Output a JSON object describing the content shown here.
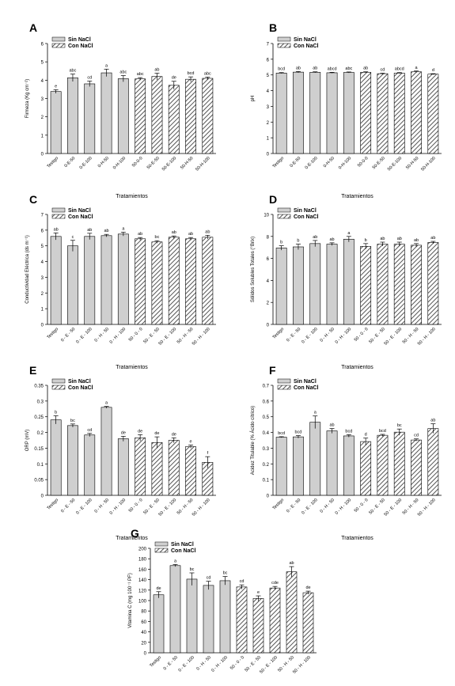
{
  "legend": {
    "sin": "Sin NaCl",
    "con": "Con NaCl"
  },
  "colors": {
    "bar": "#cfcfcf",
    "stroke": "#000000",
    "hatch": "#555555"
  },
  "chart_data": [
    {
      "id": "A",
      "panel_label": "A",
      "type": "bar",
      "ylabel": "Firmeza (Kg cm⁻²)",
      "xlabel": "Tratamientos",
      "ylim": [
        0,
        6
      ],
      "yticks": [
        0,
        1,
        2,
        3,
        4,
        5,
        6
      ],
      "legend_position": "top-left",
      "categories": [
        "Testigo",
        "0-E-50",
        "0-E-100",
        "0-H-50",
        "0-H-100",
        "50-0-0",
        "50-E-50",
        "50-E-100",
        "50-H-50",
        "50-H-100"
      ],
      "series": [
        {
          "name": "Sin NaCl",
          "values": [
            3.38,
            4.13,
            3.8,
            4.4,
            4.08,
            null,
            null,
            null,
            null,
            null
          ],
          "errors": [
            0.1,
            0.2,
            0.15,
            0.2,
            0.17,
            null,
            null,
            null,
            null,
            null
          ],
          "letters": [
            "e",
            "abc",
            "cd",
            "a",
            "abc",
            null,
            null,
            null,
            null,
            null
          ]
        },
        {
          "name": "Con NaCl",
          "values": [
            null,
            null,
            null,
            null,
            null,
            4.07,
            4.2,
            3.72,
            4.05,
            4.1
          ],
          "errors": [
            null,
            null,
            null,
            null,
            null,
            0.07,
            0.18,
            0.22,
            0.13,
            0.07
          ],
          "letters": [
            null,
            null,
            null,
            null,
            null,
            "abc",
            "ab",
            "de",
            "bcd",
            "abc"
          ]
        }
      ]
    },
    {
      "id": "B",
      "panel_label": "B",
      "type": "bar",
      "ylabel": "pH",
      "xlabel": "Tratamientos",
      "ylim": [
        0,
        7
      ],
      "yticks": [
        0,
        1,
        2,
        3,
        4,
        5,
        6,
        7
      ],
      "legend_position": "top-left",
      "categories": [
        "Testigo",
        "0-E-50",
        "0-E-100",
        "0-H-50",
        "0-H-100",
        "50-0-0",
        "50-E-50",
        "50-E-100",
        "50-H-50",
        "50-H-100"
      ],
      "series": [
        {
          "name": "Sin NaCl",
          "values": [
            5.12,
            5.18,
            5.17,
            5.14,
            5.16,
            null,
            null,
            null,
            null,
            null
          ],
          "errors": [
            0.03,
            0.04,
            0.03,
            0.03,
            0.03,
            null,
            null,
            null,
            null,
            null
          ],
          "letters": [
            "bcd",
            "ab",
            "ab",
            "abcd",
            "abc",
            null,
            null,
            null,
            null,
            null
          ]
        },
        {
          "name": "Con NaCl",
          "values": [
            null,
            null,
            null,
            null,
            null,
            5.17,
            5.08,
            5.12,
            5.2,
            5.05
          ],
          "errors": [
            null,
            null,
            null,
            null,
            null,
            0.03,
            0.03,
            0.03,
            0.05,
            0.03
          ],
          "letters": [
            null,
            null,
            null,
            null,
            null,
            "ab",
            "cd",
            "abcd",
            "a",
            "d"
          ]
        }
      ]
    },
    {
      "id": "C",
      "panel_label": "C",
      "type": "bar",
      "ylabel": "Conductividad Eléctrica (ds m⁻¹)",
      "xlabel": "Tratamientos",
      "ylim": [
        0,
        7
      ],
      "yticks": [
        0,
        1,
        2,
        3,
        4,
        5,
        6,
        7
      ],
      "legend_position": "top-left",
      "categories": [
        "Testigo",
        "0 - E - 50",
        "0 - E - 100",
        "0 - H - 50",
        "0 - H - 100",
        "50 - 0 - 0",
        "50 - E - 50",
        "50 - E - 100",
        "50 - H - 50",
        "50 - H - 100"
      ],
      "series": [
        {
          "name": "Sin NaCl",
          "values": [
            5.6,
            5.0,
            5.6,
            5.65,
            5.75,
            null,
            null,
            null,
            null,
            null
          ],
          "errors": [
            0.22,
            0.35,
            0.2,
            0.08,
            0.12,
            null,
            null,
            null,
            null,
            null
          ],
          "letters": [
            "ab",
            "c",
            "ab",
            "ab",
            "a",
            null,
            null,
            null,
            null,
            null
          ]
        },
        {
          "name": "Con NaCl",
          "values": [
            null,
            null,
            null,
            null,
            null,
            5.45,
            5.25,
            5.55,
            5.45,
            5.55
          ],
          "errors": [
            null,
            null,
            null,
            null,
            null,
            0.08,
            0.08,
            0.08,
            0.08,
            0.12
          ],
          "letters": [
            null,
            null,
            null,
            null,
            null,
            "ab",
            "bc",
            "ab",
            "ab",
            "ab"
          ]
        }
      ]
    },
    {
      "id": "D",
      "panel_label": "D",
      "type": "bar",
      "ylabel": "Sólidos Solubles Totales (°Brix)",
      "xlabel": "Tratamientos",
      "ylim": [
        0,
        10
      ],
      "yticks": [
        0,
        2,
        4,
        6,
        8,
        10
      ],
      "legend_position": "top-left",
      "categories": [
        "Testigo",
        "0 - E - 50",
        "0 - E - 100",
        "0 - H - 50",
        "0 - H - 100",
        "50 - 0 - 0",
        "50 - E - 50",
        "50 - E - 100",
        "50 - H - 50",
        "50 - H - 100"
      ],
      "series": [
        {
          "name": "Sin NaCl",
          "values": [
            6.95,
            7.05,
            7.35,
            7.3,
            7.75,
            null,
            null,
            null,
            null,
            null
          ],
          "errors": [
            0.2,
            0.25,
            0.28,
            0.12,
            0.25,
            null,
            null,
            null,
            null,
            null
          ],
          "letters": [
            "b",
            "b",
            "ab",
            "ab",
            "a",
            null,
            null,
            null,
            null,
            null
          ]
        },
        {
          "name": "Con NaCl",
          "values": [
            null,
            null,
            null,
            null,
            null,
            7.1,
            7.3,
            7.3,
            7.2,
            7.45
          ],
          "errors": [
            null,
            null,
            null,
            null,
            null,
            0.25,
            0.18,
            0.18,
            0.15,
            0.1
          ],
          "letters": [
            null,
            null,
            null,
            null,
            null,
            "b",
            "ab",
            "ab",
            "ab",
            "ab"
          ]
        }
      ]
    },
    {
      "id": "E",
      "panel_label": "E",
      "type": "bar",
      "ylabel": "ORP (mV)",
      "xlabel": "Tratamientos",
      "ylim": [
        0,
        0.35
      ],
      "yticks": [
        0,
        0.05,
        0.1,
        0.15,
        0.2,
        0.25,
        0.3,
        0.35
      ],
      "legend_position": "top-left",
      "categories": [
        "Testigo",
        "0 - E - 50",
        "0 - E - 100",
        "0 - H - 50",
        "0 - H - 100",
        "50 - 0 - 0",
        "50 - E - 50",
        "50 - E - 100",
        "50 - H - 50",
        "50 - H - 100"
      ],
      "series": [
        {
          "name": "Sin NaCl",
          "values": [
            0.24,
            0.222,
            0.192,
            0.28,
            0.18,
            null,
            null,
            null,
            null,
            null
          ],
          "errors": [
            0.013,
            0.005,
            0.005,
            0.003,
            0.008,
            null,
            null,
            null,
            null,
            null
          ],
          "letters": [
            "b",
            "bc",
            "cd",
            "a",
            "de",
            null,
            null,
            null,
            null,
            null
          ]
        },
        {
          "name": "Con NaCl",
          "values": [
            null,
            null,
            null,
            null,
            null,
            0.183,
            0.168,
            0.175,
            0.155,
            0.105
          ],
          "errors": [
            null,
            null,
            null,
            null,
            null,
            0.01,
            0.018,
            0.008,
            0.005,
            0.018
          ],
          "letters": [
            null,
            null,
            null,
            null,
            null,
            "de",
            "de",
            "de",
            "e",
            "f"
          ]
        }
      ]
    },
    {
      "id": "F",
      "panel_label": "F",
      "type": "bar",
      "ylabel": "Acidez Titulable (% Ácido cítrico)",
      "xlabel": "Tratamientos",
      "ylim": [
        0,
        0.7
      ],
      "yticks": [
        0,
        0.1,
        0.2,
        0.3,
        0.4,
        0.5,
        0.6,
        0.7
      ],
      "legend_position": "top-left",
      "categories": [
        "Testigo",
        "0 - E - 50",
        "0 - E - 100",
        "0 - H - 50",
        "0 - H - 100",
        "50 - 0 - 0",
        "50 - E - 50",
        "50 - E - 100",
        "50 - H - 50",
        "50 - H - 100"
      ],
      "series": [
        {
          "name": "Sin NaCl",
          "values": [
            0.37,
            0.372,
            0.465,
            0.41,
            0.378,
            null,
            null,
            null,
            null,
            null
          ],
          "errors": [
            0.003,
            0.008,
            0.04,
            0.015,
            0.008,
            null,
            null,
            null,
            null,
            null
          ],
          "letters": [
            "bcd",
            "bcd",
            "a",
            "ab",
            "bcd",
            null,
            null,
            null,
            null,
            null
          ]
        },
        {
          "name": "Con NaCl",
          "values": [
            null,
            null,
            null,
            null,
            null,
            0.342,
            0.382,
            0.402,
            0.352,
            0.425
          ],
          "errors": [
            null,
            null,
            null,
            null,
            null,
            0.022,
            0.006,
            0.02,
            0.007,
            0.03
          ],
          "letters": [
            null,
            null,
            null,
            null,
            null,
            "d",
            "bcd",
            "bc",
            "cd",
            "ab"
          ]
        }
      ]
    },
    {
      "id": "G",
      "panel_label": "G",
      "type": "bar",
      "ylabel": "Vitamina C (mg 100⁻¹ PF)",
      "xlabel": "Tratamientos",
      "ylim": [
        0,
        200
      ],
      "yticks": [
        0,
        20,
        40,
        60,
        80,
        100,
        120,
        140,
        160,
        180,
        200
      ],
      "legend_position": "top-left",
      "categories": [
        "Testigo",
        "0 - E - 50",
        "0 - E - 100",
        "0 - H - 50",
        "0 - H - 100",
        "50 - 0 - 0",
        "50 - E - 50",
        "50 - E - 100",
        "50 - H - 50",
        "50 - H - 100"
      ],
      "series": [
        {
          "name": "Sin NaCl",
          "values": [
            111,
            167,
            141,
            129,
            138,
            null,
            null,
            null,
            null,
            null
          ],
          "errors": [
            6,
            2,
            12,
            8,
            8,
            null,
            null,
            null,
            null,
            null
          ],
          "letters": [
            "de",
            "a",
            "bc",
            "cd",
            "bc",
            null,
            null,
            null,
            null,
            null
          ]
        },
        {
          "name": "Con NaCl",
          "values": [
            null,
            null,
            null,
            null,
            null,
            126,
            104,
            124,
            155,
            115
          ],
          "errors": [
            null,
            null,
            null,
            null,
            null,
            4,
            5,
            3,
            10,
            3
          ],
          "letters": [
            null,
            null,
            null,
            null,
            null,
            "cd",
            "e",
            "cde",
            "ab",
            "de"
          ]
        }
      ]
    }
  ]
}
